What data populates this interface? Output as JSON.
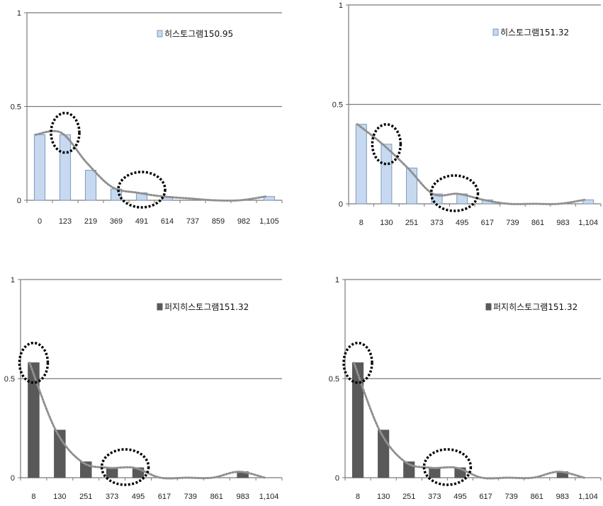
{
  "chart_data": [
    {
      "type": "bar",
      "legend": "히스토그램150.95",
      "categories": [
        "0",
        "123",
        "219",
        "369",
        "491",
        "614",
        "737",
        "859",
        "982",
        "1,105"
      ],
      "values": [
        0.35,
        0.35,
        0.16,
        0.06,
        0.04,
        0.02,
        0.0,
        0.0,
        0.0,
        0.02
      ],
      "trend": [
        0.35,
        0.36,
        0.2,
        0.07,
        0.04,
        0.02,
        0.01,
        0.0,
        0.0,
        0.02
      ],
      "yticks": [
        "0",
        "0.5",
        "1"
      ],
      "ylim": [
        0,
        1
      ],
      "bar_fill": "#c6d9f1",
      "bar_stroke": "#7f9ab8",
      "trend_color": "#909090",
      "highlights": [
        1,
        4
      ],
      "grid": true,
      "legend_position": "top-right"
    },
    {
      "type": "bar",
      "legend": "히스토그램151.32",
      "categories": [
        "8",
        "130",
        "251",
        "373",
        "495",
        "617",
        "739",
        "861",
        "983",
        "1,104"
      ],
      "values": [
        0.4,
        0.3,
        0.18,
        0.05,
        0.05,
        0.02,
        0.0,
        0.0,
        0.0,
        0.02
      ],
      "trend": [
        0.4,
        0.3,
        0.18,
        0.05,
        0.05,
        0.02,
        0.0,
        0.0,
        0.0,
        0.02
      ],
      "yticks": [
        "0",
        "0.5",
        "1"
      ],
      "ylim": [
        0,
        1
      ],
      "bar_fill": "#c6d9f1",
      "bar_stroke": "#7f9ab8",
      "trend_color": "#909090",
      "highlights": [
        1,
        3.7
      ],
      "grid": true,
      "legend_position": "top-right"
    },
    {
      "type": "bar",
      "legend": "퍼지히스토그램151.32",
      "categories": [
        "8",
        "130",
        "251",
        "373",
        "495",
        "617",
        "739",
        "861",
        "983",
        "1,104"
      ],
      "values": [
        0.58,
        0.24,
        0.08,
        0.05,
        0.05,
        0.0,
        0.0,
        0.0,
        0.03,
        0.0
      ],
      "trend": [
        0.58,
        0.24,
        0.08,
        0.05,
        0.05,
        0.0,
        0.0,
        0.0,
        0.03,
        0.0
      ],
      "yticks": [
        "0",
        "0.5",
        "1"
      ],
      "ylim": [
        0,
        1
      ],
      "bar_fill": "#595959",
      "bar_stroke": "#595959",
      "trend_color": "#909090",
      "highlights": [
        0,
        3.5
      ],
      "grid": true,
      "legend_position": "top-right"
    },
    {
      "type": "bar",
      "legend": "퍼지히스토그램151.32",
      "categories": [
        "8",
        "130",
        "251",
        "373",
        "495",
        "617",
        "739",
        "861",
        "983",
        "1,104"
      ],
      "values": [
        0.58,
        0.24,
        0.08,
        0.05,
        0.05,
        0.0,
        0.0,
        0.0,
        0.03,
        0.0
      ],
      "trend": [
        0.58,
        0.24,
        0.08,
        0.05,
        0.05,
        0.0,
        0.0,
        0.0,
        0.03,
        0.0
      ],
      "yticks": [
        "0",
        "0.5",
        "1"
      ],
      "ylim": [
        0,
        1
      ],
      "bar_fill": "#595959",
      "bar_stroke": "#595959",
      "trend_color": "#909090",
      "highlights": [
        0,
        3.5
      ],
      "grid": true,
      "legend_position": "top-right"
    }
  ]
}
